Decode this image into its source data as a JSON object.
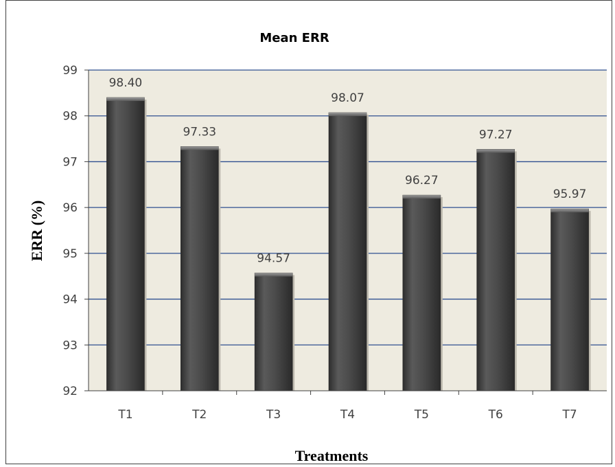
{
  "chart_data": {
    "type": "bar",
    "title": "Mean ERR",
    "xlabel": "Treatments",
    "ylabel": "ERR (%)",
    "categories": [
      "T1",
      "T2",
      "T3",
      "T4",
      "T5",
      "T6",
      "T7"
    ],
    "values": [
      98.4,
      97.33,
      94.57,
      98.07,
      96.27,
      97.27,
      95.97
    ],
    "data_labels": [
      "98.40",
      "97.33",
      "94.57",
      "98.07",
      "96.27",
      "97.27",
      "95.97"
    ],
    "ylim": [
      92,
      99
    ],
    "yticks": [
      92,
      93,
      94,
      95,
      96,
      97,
      98,
      99
    ],
    "grid": true,
    "legend": "none",
    "colors": {
      "plot_background": "#EEEBE0",
      "gridline": "#2F4F8F",
      "bar": "#4A4A4A",
      "bar_highlight": "#6E6E6E",
      "bar_shadow": "#2E2E2E"
    }
  }
}
